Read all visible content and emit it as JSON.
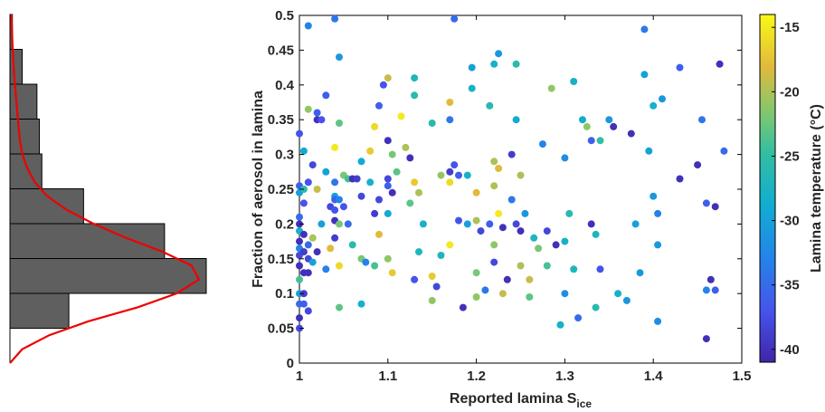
{
  "chart_data": [
    {
      "type": "histogram",
      "orientation": "horizontal",
      "bins": [
        {
          "y0": 0.0,
          "y1": 0.05,
          "count": 0
        },
        {
          "y0": 0.05,
          "y1": 0.1,
          "count": 24
        },
        {
          "y0": 0.1,
          "y1": 0.15,
          "count": 80
        },
        {
          "y0": 0.15,
          "y1": 0.2,
          "count": 63
        },
        {
          "y0": 0.2,
          "y1": 0.25,
          "count": 30
        },
        {
          "y0": 0.25,
          "y1": 0.3,
          "count": 13
        },
        {
          "y0": 0.3,
          "y1": 0.35,
          "count": 12
        },
        {
          "y0": 0.35,
          "y1": 0.4,
          "count": 11
        },
        {
          "y0": 0.4,
          "y1": 0.45,
          "count": 5
        },
        {
          "y0": 0.45,
          "y1": 0.5,
          "count": 1
        }
      ],
      "bar_color": "#5f5f5f",
      "fit_curve_color": "#ee0000",
      "fit_curve": {
        "x": [
          0.0,
          0.02,
          0.04,
          0.06,
          0.08,
          0.1,
          0.12,
          0.14,
          0.16,
          0.18,
          0.2,
          0.22,
          0.24,
          0.26,
          0.28,
          0.3,
          0.32,
          0.34,
          0.36,
          0.38,
          0.4,
          0.42,
          0.44,
          0.46,
          0.48,
          0.5
        ],
        "y": [
          0,
          5,
          16,
          32,
          52,
          68,
          77,
          74,
          62,
          47,
          34,
          23,
          15,
          10,
          7,
          5,
          4,
          3.5,
          3,
          2.5,
          2,
          1.6,
          1.3,
          1,
          0.8,
          0.6
        ]
      },
      "ylim": [
        0,
        0.5
      ]
    },
    {
      "type": "scatter",
      "xlabel": "Reported lamina S",
      "xlabel_sub": "ice",
      "ylabel": "Fraction of aerosol in lamina",
      "xlim": [
        1,
        1.5
      ],
      "ylim": [
        0,
        0.5
      ],
      "xticks": [
        "1",
        "1.1",
        "1.2",
        "1.3",
        "1.4",
        "1.5"
      ],
      "yticks": [
        "0",
        "0.05",
        "0.1",
        "0.15",
        "0.2",
        "0.25",
        "0.3",
        "0.35",
        "0.4",
        "0.45",
        "0.5"
      ],
      "colorbar": {
        "label": "Lamina temperature (°C)",
        "range": [
          -41,
          -14
        ],
        "ticks": [
          "-15",
          "-20",
          "-25",
          "-30",
          "-35",
          "-40"
        ],
        "colormap": "parula"
      },
      "points": [
        [
          1.0,
          0.33,
          -37
        ],
        [
          1.0,
          0.255,
          -36
        ],
        [
          1.0,
          0.245,
          -30
        ],
        [
          1.0,
          0.21,
          -35
        ],
        [
          1.0,
          0.2,
          -40
        ],
        [
          1.0,
          0.19,
          -28
        ],
        [
          1.0,
          0.175,
          -40
        ],
        [
          1.0,
          0.165,
          -33
        ],
        [
          1.0,
          0.155,
          -38
        ],
        [
          1.0,
          0.14,
          -40
        ],
        [
          1.0,
          0.12,
          -24
        ],
        [
          1.0,
          0.1,
          -30
        ],
        [
          1.0,
          0.085,
          -35
        ],
        [
          1.0,
          0.065,
          -40
        ],
        [
          1.0,
          0.05,
          -38
        ],
        [
          1.005,
          0.305,
          -29
        ],
        [
          1.005,
          0.25,
          -26
        ],
        [
          1.005,
          0.23,
          -37
        ],
        [
          1.005,
          0.185,
          -40
        ],
        [
          1.005,
          0.16,
          -39
        ],
        [
          1.005,
          0.13,
          -40
        ],
        [
          1.005,
          0.1,
          -39
        ],
        [
          1.005,
          0.085,
          -36
        ],
        [
          1.01,
          0.485,
          -33
        ],
        [
          1.01,
          0.365,
          -21
        ],
        [
          1.01,
          0.26,
          -37
        ],
        [
          1.01,
          0.17,
          -35
        ],
        [
          1.01,
          0.15,
          -38
        ],
        [
          1.01,
          0.13,
          -40
        ],
        [
          1.01,
          0.075,
          -38
        ],
        [
          1.015,
          0.285,
          -38
        ],
        [
          1.015,
          0.18,
          -20
        ],
        [
          1.015,
          0.145,
          -30
        ],
        [
          1.02,
          0.36,
          -36
        ],
        [
          1.02,
          0.35,
          -40
        ],
        [
          1.02,
          0.25,
          -19
        ],
        [
          1.02,
          0.16,
          -40
        ],
        [
          1.025,
          0.35,
          -37
        ],
        [
          1.025,
          0.2,
          -30
        ],
        [
          1.03,
          0.385,
          -36
        ],
        [
          1.03,
          0.275,
          -30
        ],
        [
          1.03,
          0.135,
          -33
        ],
        [
          1.035,
          0.225,
          -38
        ],
        [
          1.035,
          0.165,
          -18
        ],
        [
          1.04,
          0.495,
          -34
        ],
        [
          1.04,
          0.26,
          -34
        ],
        [
          1.04,
          0.24,
          -30
        ],
        [
          1.04,
          0.235,
          -36
        ],
        [
          1.04,
          0.31,
          -15
        ],
        [
          1.04,
          0.22,
          -37
        ],
        [
          1.04,
          0.205,
          -40
        ],
        [
          1.04,
          0.18,
          -39
        ],
        [
          1.045,
          0.44,
          -31
        ],
        [
          1.045,
          0.345,
          -23
        ],
        [
          1.045,
          0.235,
          -33
        ],
        [
          1.045,
          0.2,
          -22
        ],
        [
          1.045,
          0.14,
          -16
        ],
        [
          1.045,
          0.08,
          -23
        ],
        [
          1.05,
          0.27,
          -22
        ],
        [
          1.05,
          0.225,
          -37
        ],
        [
          1.055,
          0.265,
          -24
        ],
        [
          1.055,
          0.2,
          -35
        ],
        [
          1.06,
          0.265,
          -40
        ],
        [
          1.06,
          0.17,
          -26
        ],
        [
          1.065,
          0.265,
          -39
        ],
        [
          1.07,
          0.29,
          -29
        ],
        [
          1.07,
          0.24,
          -38
        ],
        [
          1.07,
          0.15,
          -22
        ],
        [
          1.07,
          0.085,
          -28
        ],
        [
          1.075,
          0.145,
          -33
        ],
        [
          1.08,
          0.305,
          -17
        ],
        [
          1.08,
          0.26,
          -28
        ],
        [
          1.085,
          0.34,
          -16
        ],
        [
          1.085,
          0.215,
          -39
        ],
        [
          1.085,
          0.14,
          -24
        ],
        [
          1.09,
          0.235,
          -38
        ],
        [
          1.09,
          0.185,
          -18
        ],
        [
          1.09,
          0.37,
          -36
        ],
        [
          1.095,
          0.4,
          -37
        ],
        [
          1.1,
          0.41,
          -19
        ],
        [
          1.1,
          0.32,
          -40
        ],
        [
          1.1,
          0.265,
          -38
        ],
        [
          1.1,
          0.255,
          -36
        ],
        [
          1.1,
          0.215,
          -29
        ],
        [
          1.1,
          0.15,
          -21
        ],
        [
          1.105,
          0.3,
          -22
        ],
        [
          1.105,
          0.245,
          -40
        ],
        [
          1.105,
          0.13,
          -17
        ],
        [
          1.11,
          0.275,
          -23
        ],
        [
          1.115,
          0.355,
          -15
        ],
        [
          1.12,
          0.31,
          -20
        ],
        [
          1.125,
          0.295,
          -40
        ],
        [
          1.125,
          0.23,
          -23
        ],
        [
          1.13,
          0.41,
          -27
        ],
        [
          1.13,
          0.385,
          -26
        ],
        [
          1.13,
          0.26,
          -17
        ],
        [
          1.13,
          0.12,
          -37
        ],
        [
          1.135,
          0.245,
          -20
        ],
        [
          1.135,
          0.16,
          -27
        ],
        [
          1.14,
          0.2,
          -28
        ],
        [
          1.15,
          0.345,
          -26
        ],
        [
          1.15,
          0.125,
          -17
        ],
        [
          1.15,
          0.09,
          -21
        ],
        [
          1.155,
          0.11,
          -38
        ],
        [
          1.16,
          0.27,
          -21
        ],
        [
          1.16,
          0.155,
          -27
        ],
        [
          1.17,
          0.375,
          -18
        ],
        [
          1.17,
          0.35,
          -34
        ],
        [
          1.17,
          0.275,
          -39
        ],
        [
          1.17,
          0.26,
          -16
        ],
        [
          1.17,
          0.17,
          -15
        ],
        [
          1.175,
          0.495,
          -35
        ],
        [
          1.175,
          0.285,
          -37
        ],
        [
          1.18,
          0.27,
          -36
        ],
        [
          1.18,
          0.205,
          -37
        ],
        [
          1.185,
          0.08,
          -40
        ],
        [
          1.19,
          0.27,
          -28
        ],
        [
          1.19,
          0.2,
          -30
        ],
        [
          1.195,
          0.425,
          -30
        ],
        [
          1.195,
          0.395,
          -28
        ],
        [
          1.2,
          0.245,
          -18
        ],
        [
          1.2,
          0.205,
          -20
        ],
        [
          1.2,
          0.13,
          -22
        ],
        [
          1.2,
          0.095,
          -21
        ],
        [
          1.205,
          0.19,
          -38
        ],
        [
          1.21,
          0.105,
          -34
        ],
        [
          1.215,
          0.37,
          -26
        ],
        [
          1.215,
          0.2,
          -36
        ],
        [
          1.22,
          0.43,
          -28
        ],
        [
          1.22,
          0.29,
          -20
        ],
        [
          1.22,
          0.255,
          -20
        ],
        [
          1.22,
          0.17,
          -21
        ],
        [
          1.22,
          0.145,
          -38
        ],
        [
          1.225,
          0.445,
          -31
        ],
        [
          1.225,
          0.28,
          -18
        ],
        [
          1.225,
          0.215,
          -15
        ],
        [
          1.23,
          0.195,
          -40
        ],
        [
          1.23,
          0.1,
          -19
        ],
        [
          1.235,
          0.12,
          -40
        ],
        [
          1.24,
          0.235,
          -34
        ],
        [
          1.24,
          0.3,
          -39
        ],
        [
          1.245,
          0.43,
          -26
        ],
        [
          1.245,
          0.35,
          -29
        ],
        [
          1.245,
          0.2,
          -38
        ],
        [
          1.25,
          0.27,
          -20
        ],
        [
          1.25,
          0.19,
          -40
        ],
        [
          1.25,
          0.14,
          -20
        ],
        [
          1.255,
          0.215,
          -31
        ],
        [
          1.26,
          0.12,
          -19
        ],
        [
          1.26,
          0.095,
          -23
        ],
        [
          1.265,
          0.18,
          -27
        ],
        [
          1.27,
          0.165,
          -22
        ],
        [
          1.275,
          0.315,
          -33
        ],
        [
          1.28,
          0.19,
          -38
        ],
        [
          1.28,
          0.14,
          -24
        ],
        [
          1.285,
          0.395,
          -21
        ],
        [
          1.29,
          0.17,
          -40
        ],
        [
          1.295,
          0.055,
          -28
        ],
        [
          1.3,
          0.295,
          -32
        ],
        [
          1.3,
          0.175,
          -28
        ],
        [
          1.3,
          0.1,
          -32
        ],
        [
          1.305,
          0.215,
          -26
        ],
        [
          1.31,
          0.405,
          -28
        ],
        [
          1.31,
          0.135,
          -27
        ],
        [
          1.315,
          0.065,
          -35
        ],
        [
          1.32,
          0.35,
          -29
        ],
        [
          1.325,
          0.34,
          -21
        ],
        [
          1.33,
          0.32,
          -36
        ],
        [
          1.33,
          0.2,
          -40
        ],
        [
          1.335,
          0.185,
          -27
        ],
        [
          1.335,
          0.08,
          -26
        ],
        [
          1.34,
          0.32,
          -25
        ],
        [
          1.34,
          0.135,
          -37
        ],
        [
          1.35,
          0.35,
          -31
        ],
        [
          1.355,
          0.34,
          -40
        ],
        [
          1.36,
          0.1,
          -28
        ],
        [
          1.37,
          0.09,
          -31
        ],
        [
          1.375,
          0.33,
          -40
        ],
        [
          1.38,
          0.2,
          -30
        ],
        [
          1.385,
          0.13,
          -31
        ],
        [
          1.39,
          0.48,
          -34
        ],
        [
          1.39,
          0.415,
          -30
        ],
        [
          1.395,
          0.305,
          -30
        ],
        [
          1.4,
          0.37,
          -28
        ],
        [
          1.4,
          0.24,
          -31
        ],
        [
          1.405,
          0.215,
          -33
        ],
        [
          1.405,
          0.17,
          -31
        ],
        [
          1.405,
          0.06,
          -32
        ],
        [
          1.41,
          0.38,
          -31
        ],
        [
          1.43,
          0.425,
          -36
        ],
        [
          1.43,
          0.265,
          -40
        ],
        [
          1.45,
          0.285,
          -40
        ],
        [
          1.455,
          0.35,
          -34
        ],
        [
          1.46,
          0.23,
          -36
        ],
        [
          1.46,
          0.105,
          -33
        ],
        [
          1.46,
          0.035,
          -40
        ],
        [
          1.465,
          0.12,
          -40
        ],
        [
          1.47,
          0.225,
          -40
        ],
        [
          1.47,
          0.105,
          -36
        ],
        [
          1.475,
          0.43,
          -40
        ],
        [
          1.48,
          0.305,
          -35
        ]
      ]
    }
  ]
}
